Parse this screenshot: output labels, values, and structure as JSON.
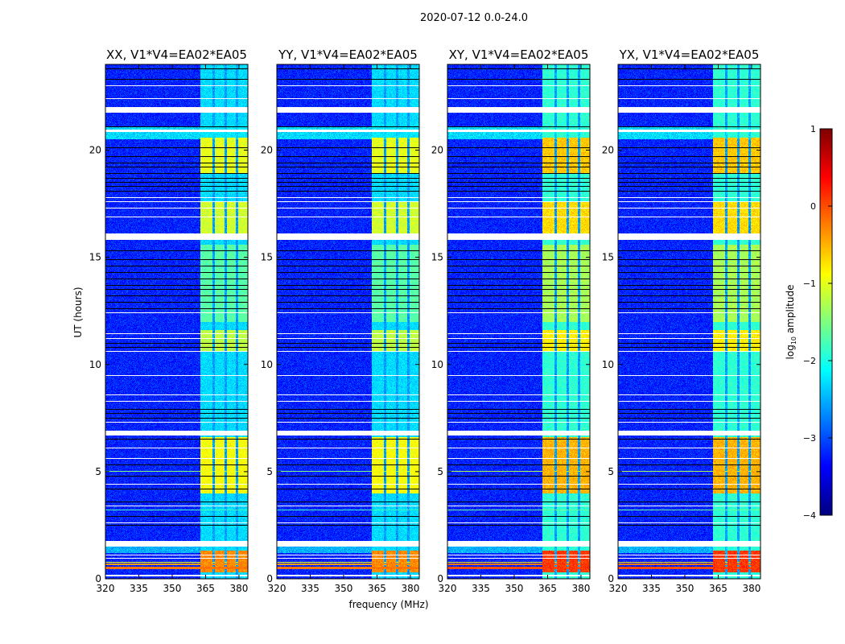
{
  "chart_data": {
    "type": "heatmap",
    "suptitle": "2020-07-12 0.0-24.0",
    "panels": [
      {
        "title": "XX, V1*V4=EA02*EA05",
        "pol": "XX"
      },
      {
        "title": "YY, V1*V4=EA02*EA05",
        "pol": "YY"
      },
      {
        "title": "XY, V1*V4=EA02*EA05",
        "pol": "XY"
      },
      {
        "title": "YX, V1*V4=EA02*EA05",
        "pol": "YX"
      }
    ],
    "xlabel": "frequency (MHz)",
    "ylabel": "UT (hours)",
    "xlim": [
      320,
      384
    ],
    "ylim": [
      0,
      24
    ],
    "xticks": [
      "320",
      "335",
      "350",
      "365",
      "380"
    ],
    "yticks": [
      "0",
      "5",
      "10",
      "15",
      "20"
    ],
    "colorbar": {
      "label_main": "log",
      "label_sub": "10",
      "label_rest": " amplitude",
      "range": [
        -4,
        1
      ],
      "ticks": [
        "−4",
        "−3",
        "−2",
        "−1",
        "0",
        "1"
      ],
      "colormap": "jet"
    },
    "background_level": -3.2,
    "rfi_channels_mhz": [
      [
        362.5,
        368
      ],
      [
        369,
        373.5
      ],
      [
        374.5,
        378.5
      ],
      [
        379.5,
        384
      ]
    ],
    "active_periods": [
      {
        "hours": [
          0.3,
          1.3
        ],
        "level": -0.3
      },
      {
        "hours": [
          4.0,
          6.6
        ],
        "level": -0.9
      },
      {
        "hours": [
          10.6,
          11.6
        ],
        "level": -1.2
      },
      {
        "hours": [
          12.0,
          15.6
        ],
        "level": -1.7
      },
      {
        "hours": [
          16.1,
          17.6
        ],
        "level": -1.1
      },
      {
        "hours": [
          18.9,
          20.6
        ],
        "level": -1.0
      }
    ],
    "default_channel_level": -2.3,
    "broadband_rfi_hours": [
      [
        0.45,
        0.55,
        -0.2
      ],
      [
        0.62,
        0.7,
        -0.4
      ],
      [
        0.75,
        0.8,
        -0.9
      ],
      [
        5.0,
        5.03,
        -1.5
      ],
      [
        3.2,
        3.23,
        -1.8
      ]
    ],
    "flagged_hours": [
      [
        21.75,
        22.0
      ],
      [
        20.85,
        20.95
      ],
      [
        15.8,
        16.1
      ],
      [
        6.7,
        6.9
      ],
      [
        1.5,
        1.75
      ],
      [
        0.1,
        0.2
      ]
    ],
    "thin_flag_hours": [
      23.0,
      22.4,
      17.8,
      17.6,
      17.3,
      16.9,
      12.4,
      11.45,
      11.2,
      10.6,
      9.5,
      8.6,
      8.3,
      7.3,
      6.1,
      5.6,
      4.4,
      3.4,
      2.6,
      1.1,
      0.95
    ],
    "black_line_hours": [
      23.8,
      23.3,
      21.1,
      20.1,
      19.7,
      19.4,
      19.2,
      18.9,
      18.7,
      18.5,
      18.3,
      18.1,
      15.3,
      14.9,
      14.6,
      14.3,
      14.0,
      13.7,
      13.5,
      13.2,
      12.9,
      12.6,
      11.0,
      10.8,
      7.9,
      7.7,
      7.5,
      6.5,
      5.3,
      4.8,
      4.2,
      3.6,
      2.9,
      2.5
    ]
  }
}
